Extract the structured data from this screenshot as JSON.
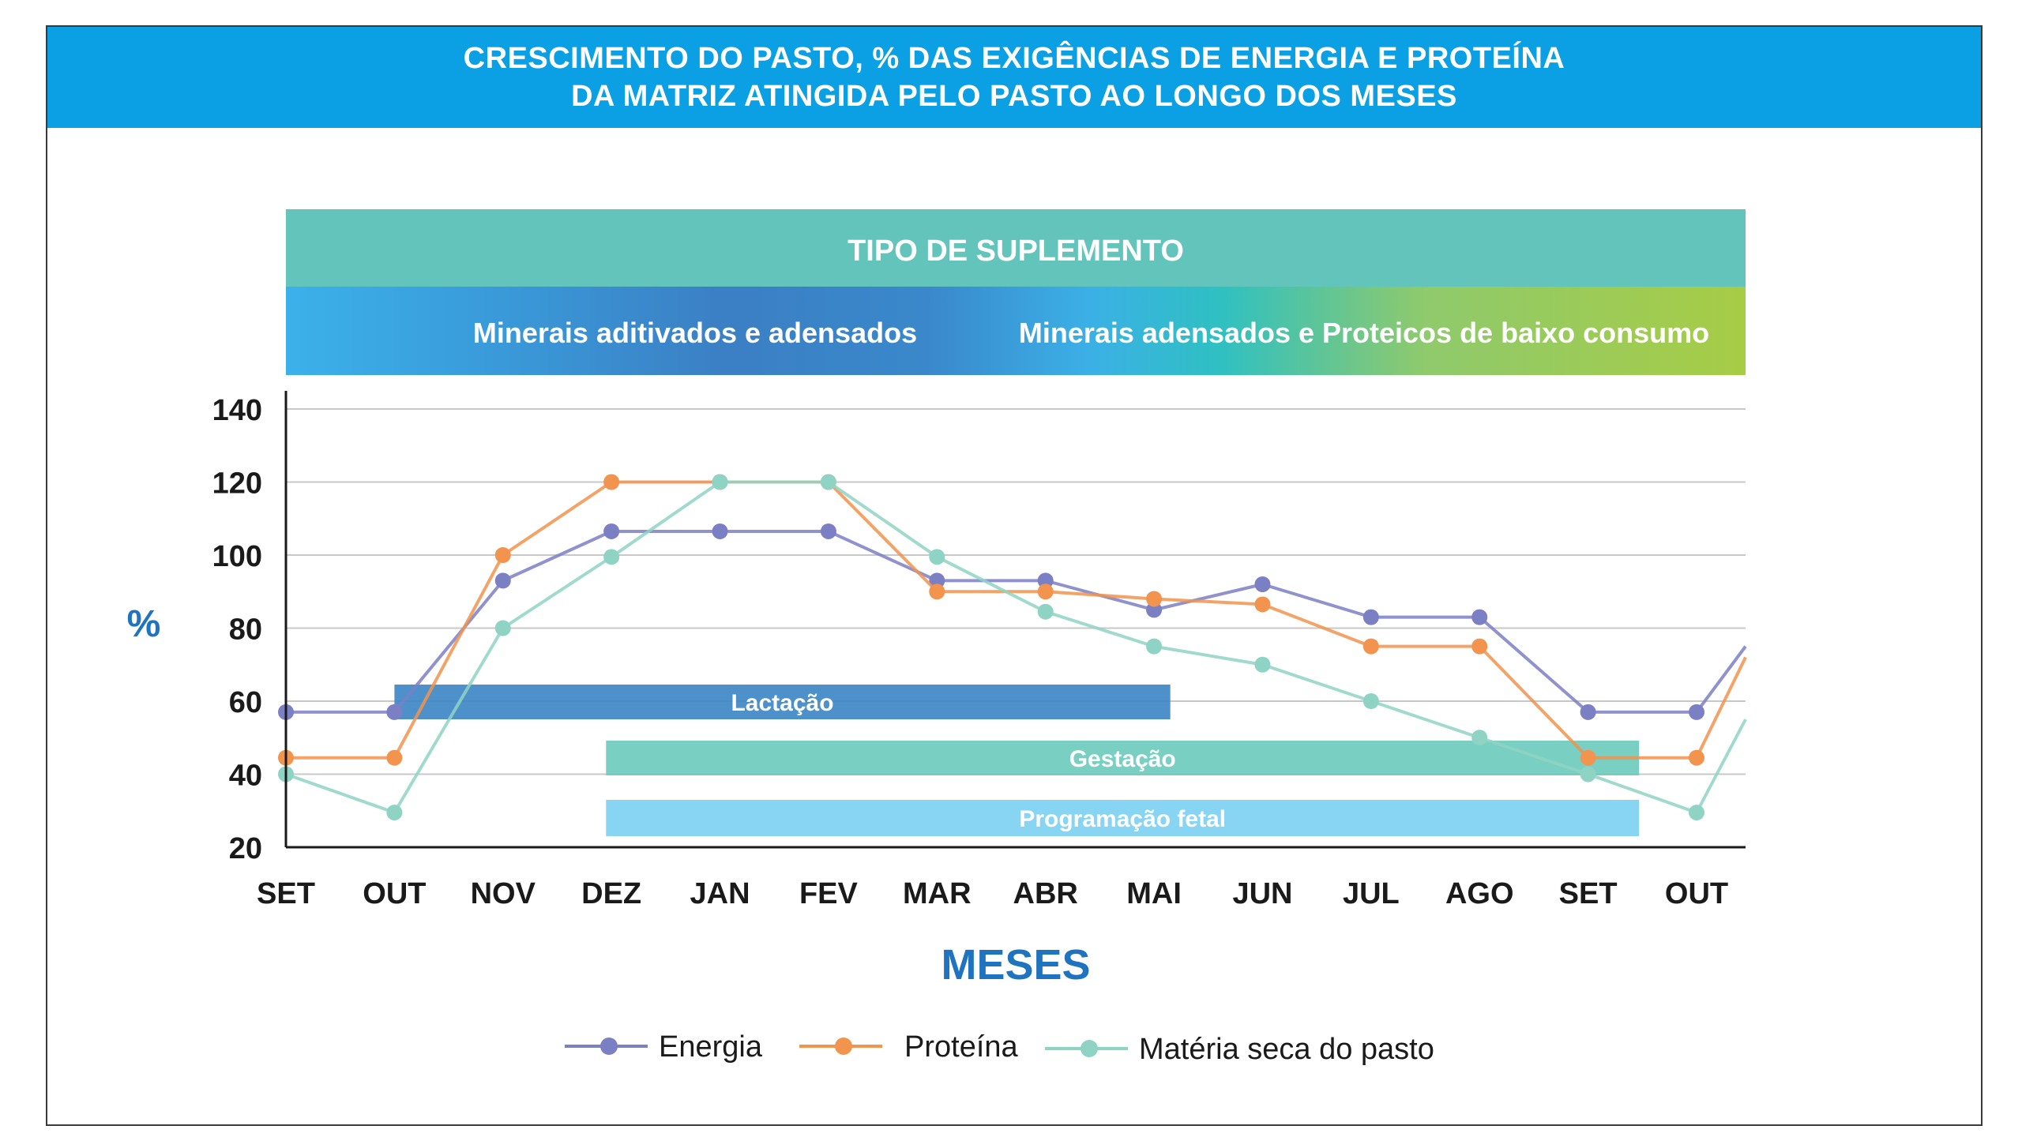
{
  "title_line1": "CRESCIMENTO DO PASTO, % DAS EXIGÊNCIAS DE ENERGIA E PROTEÍNA",
  "title_line2": "DA MATRIZ ATINGIDA PELO PASTO AO LONGO DOS MESES",
  "supplement": {
    "heading": "TIPO DE SUPLEMENTO",
    "left_label": "Minerais aditivados e adensados",
    "right_label": "Minerais adensados e Proteicos de baixo consumo"
  },
  "colors": {
    "header": "#0aa0e3",
    "supplement_heading": "#63c4bb",
    "energia": "#7b7fc4",
    "proteina": "#f2934e",
    "materia": "#8fd3c4",
    "lactacao": "#3f88c5",
    "gestacao": "#6fcbbe",
    "programacao": "#7dd1f2",
    "accent_text": "#1f74c0"
  },
  "chart_data": {
    "type": "line",
    "xlabel": "MESES",
    "ylabel": "%",
    "ylim": [
      20,
      140
    ],
    "yticks": [
      20,
      40,
      60,
      80,
      100,
      120,
      140
    ],
    "grid": true,
    "legend_position": "bottom-center",
    "categories": [
      "SET",
      "OUT",
      "NOV",
      "DEZ",
      "JAN",
      "FEV",
      "MAR",
      "ABR",
      "MAI",
      "JUN",
      "JUL",
      "AGO",
      "SET",
      "OUT"
    ],
    "series": [
      {
        "name": "Energia",
        "color": "#7b7fc4",
        "values": [
          57,
          57,
          93,
          106.5,
          106.5,
          106.5,
          93,
          93,
          85,
          92,
          83,
          83,
          57,
          57
        ],
        "end_value": 75
      },
      {
        "name": "Proteína",
        "color": "#f2934e",
        "values": [
          44.5,
          44.5,
          100,
          120,
          120,
          120,
          90,
          90,
          88,
          86.5,
          75,
          75,
          44.5,
          44.5
        ],
        "end_value": 72
      },
      {
        "name": "Matéria seca do pasto",
        "color": "#8fd3c4",
        "values": [
          40,
          29.5,
          80,
          99.5,
          120,
          120,
          99.5,
          84.5,
          75,
          70,
          60,
          50,
          40,
          29.5
        ],
        "end_value": 55
      }
    ],
    "ranges": [
      {
        "label": "Lactação",
        "color": "#3f88c5",
        "start": 1,
        "end": 8.15
      },
      {
        "label": "Gestação",
        "color": "#6fcbbe",
        "start": 2.95,
        "end": 12.47
      },
      {
        "label": "Programação fetal",
        "color": "#7dd1f2",
        "start": 2.95,
        "end": 12.47
      }
    ]
  }
}
